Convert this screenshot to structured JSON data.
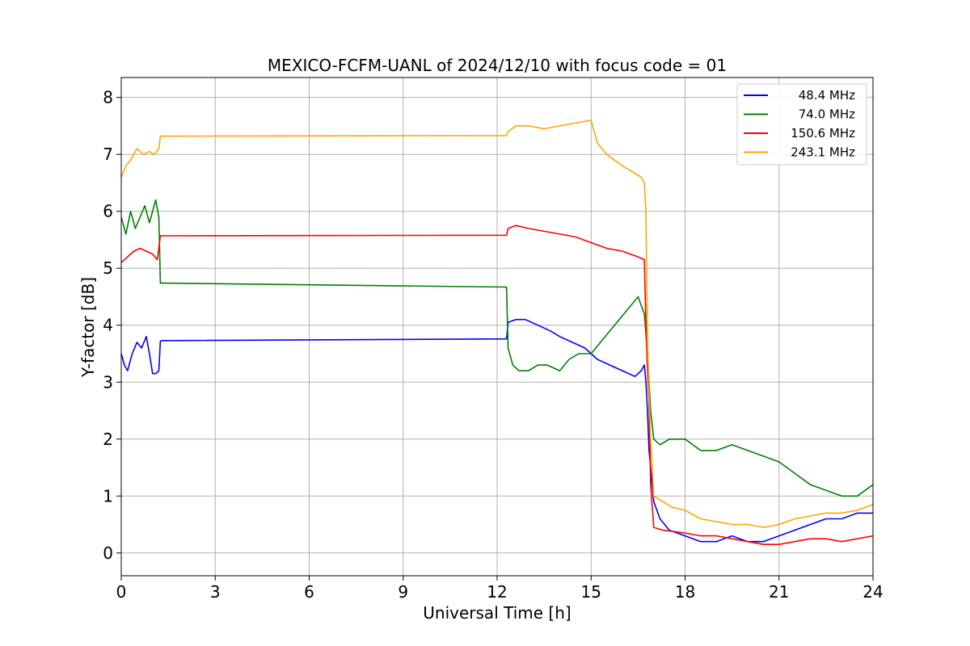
{
  "chart_data": {
    "type": "line",
    "title": "MEXICO-FCFM-UANL of 2024/12/10 with focus code = 01",
    "xlabel": "Universal Time [h]",
    "ylabel": "Y-factor [dB]",
    "xlim": [
      0,
      24
    ],
    "ylim": [
      -0.4,
      8.35
    ],
    "xticks": [
      0,
      3,
      6,
      9,
      12,
      15,
      18,
      21,
      24
    ],
    "yticks": [
      0,
      1,
      2,
      3,
      4,
      5,
      6,
      7,
      8
    ],
    "grid": true,
    "legend_position": "top-right",
    "series": [
      {
        "name": "48.4 MHz",
        "color": "#0000ff",
        "x": [
          0,
          0.1,
          0.2,
          0.35,
          0.5,
          0.65,
          0.8,
          0.9,
          1.0,
          1.1,
          1.2,
          1.25,
          1.3,
          12.3,
          12.35,
          12.6,
          12.9,
          13.3,
          13.7,
          14.0,
          14.4,
          14.8,
          15.2,
          15.6,
          16.0,
          16.4,
          16.6,
          16.7,
          16.75,
          16.8,
          16.85,
          16.9,
          17.0,
          17.2,
          17.5,
          18.0,
          18.5,
          19.0,
          19.5,
          20.0,
          20.5,
          21.0,
          21.5,
          22.0,
          22.5,
          23.0,
          23.5,
          24.0
        ],
        "y": [
          3.5,
          3.3,
          3.2,
          3.5,
          3.7,
          3.6,
          3.8,
          3.5,
          3.15,
          3.15,
          3.2,
          3.72,
          3.73,
          3.76,
          4.05,
          4.1,
          4.1,
          4.0,
          3.9,
          3.8,
          3.7,
          3.6,
          3.4,
          3.3,
          3.2,
          3.1,
          3.2,
          3.3,
          3.0,
          2.5,
          1.8,
          1.5,
          0.9,
          0.6,
          0.4,
          0.3,
          0.2,
          0.2,
          0.3,
          0.2,
          0.2,
          0.3,
          0.4,
          0.5,
          0.6,
          0.6,
          0.7,
          0.7
        ]
      },
      {
        "name": "74.0 MHz",
        "color": "#008000",
        "x": [
          0,
          0.15,
          0.3,
          0.45,
          0.6,
          0.75,
          0.9,
          1.0,
          1.1,
          1.2,
          1.25,
          1.3,
          12.3,
          12.35,
          12.5,
          12.7,
          13.0,
          13.3,
          13.6,
          14.0,
          14.3,
          14.6,
          15.0,
          15.3,
          15.6,
          15.9,
          16.2,
          16.5,
          16.7,
          16.8,
          16.9,
          17.0,
          17.2,
          17.5,
          18.0,
          18.5,
          19.0,
          19.5,
          20.0,
          20.5,
          21.0,
          21.5,
          22.0,
          22.5,
          23.0,
          23.5,
          24.0
        ],
        "y": [
          5.9,
          5.6,
          6.0,
          5.7,
          5.9,
          6.1,
          5.8,
          6.0,
          6.2,
          5.9,
          4.74,
          4.74,
          4.67,
          3.6,
          3.3,
          3.2,
          3.2,
          3.3,
          3.3,
          3.2,
          3.4,
          3.5,
          3.5,
          3.7,
          3.9,
          4.1,
          4.3,
          4.5,
          4.2,
          3.5,
          2.5,
          2.0,
          1.9,
          2.0,
          2.0,
          1.8,
          1.8,
          1.9,
          1.8,
          1.7,
          1.6,
          1.4,
          1.2,
          1.1,
          1.0,
          1.0,
          1.2
        ]
      },
      {
        "name": "150.6 MHz",
        "color": "#ff0000",
        "x": [
          0,
          0.2,
          0.4,
          0.6,
          0.8,
          1.0,
          1.15,
          1.25,
          1.3,
          12.3,
          12.35,
          12.6,
          13.0,
          13.5,
          14.0,
          14.5,
          15.0,
          15.5,
          16.0,
          16.5,
          16.7,
          16.75,
          16.8,
          16.85,
          16.9,
          17.0,
          17.3,
          18.0,
          18.5,
          19.0,
          19.5,
          20.0,
          20.5,
          21.0,
          21.5,
          22.0,
          22.5,
          23.0,
          23.5,
          24.0
        ],
        "y": [
          5.1,
          5.2,
          5.3,
          5.35,
          5.3,
          5.25,
          5.15,
          5.57,
          5.57,
          5.58,
          5.7,
          5.75,
          5.7,
          5.65,
          5.6,
          5.55,
          5.45,
          5.35,
          5.3,
          5.2,
          5.15,
          4.0,
          3.2,
          2.7,
          1.2,
          0.45,
          0.4,
          0.35,
          0.3,
          0.3,
          0.25,
          0.2,
          0.15,
          0.15,
          0.2,
          0.25,
          0.25,
          0.2,
          0.25,
          0.3
        ]
      },
      {
        "name": "243.1 MHz",
        "color": "#ffa500",
        "x": [
          0,
          0.15,
          0.3,
          0.5,
          0.7,
          0.9,
          1.05,
          1.2,
          1.25,
          1.3,
          12.3,
          12.35,
          12.6,
          13.0,
          13.5,
          14.0,
          14.5,
          15.0,
          15.2,
          15.5,
          16.0,
          16.3,
          16.6,
          16.7,
          16.75,
          16.8,
          16.9,
          17.0,
          17.3,
          17.6,
          18.0,
          18.5,
          19.0,
          19.5,
          20.0,
          20.5,
          21.0,
          21.5,
          22.0,
          22.5,
          23.0,
          23.5,
          24.0
        ],
        "y": [
          6.6,
          6.8,
          6.9,
          7.1,
          7.0,
          7.05,
          7.0,
          7.1,
          7.32,
          7.32,
          7.33,
          7.4,
          7.5,
          7.5,
          7.45,
          7.5,
          7.55,
          7.6,
          7.2,
          7.0,
          6.8,
          6.7,
          6.6,
          6.5,
          6.0,
          3.7,
          2.0,
          1.0,
          0.9,
          0.8,
          0.75,
          0.6,
          0.55,
          0.5,
          0.5,
          0.45,
          0.5,
          0.6,
          0.65,
          0.7,
          0.7,
          0.75,
          0.85
        ]
      }
    ]
  }
}
